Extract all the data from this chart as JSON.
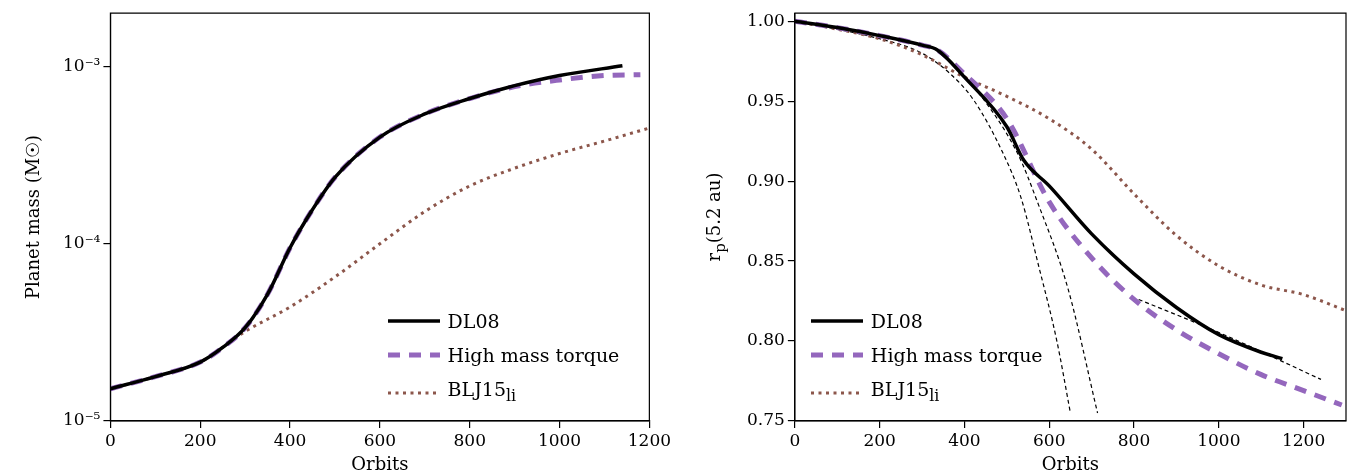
{
  "chart_data": [
    {
      "type": "line",
      "xlabel": "Orbits",
      "ylabel": "Planet mass (M☉)",
      "log": "y",
      "legend": "bottom right",
      "xlim": [
        0,
        1200
      ],
      "xticks": [
        0,
        200,
        400,
        600,
        800,
        1000,
        1200
      ],
      "ylim": [
        1e-05,
        0.002
      ],
      "yticks": [
        {
          "value": 1e-05,
          "label": "10⁻⁵"
        },
        {
          "value": 0.0001,
          "label": "10⁻⁴"
        },
        {
          "value": 0.001,
          "label": "10⁻³"
        }
      ],
      "grid": false,
      "series": [
        {
          "name": "DL08",
          "color": "#000000",
          "line_style": "solid",
          "x": [
            0,
            100,
            200,
            250,
            300,
            350,
            400,
            450,
            500,
            600,
            700,
            800,
            900,
            1000,
            1140
          ],
          "values": [
            1.52e-05,
            1.78e-05,
            2.15e-05,
            2.6e-05,
            3.36e-05,
            5.2e-05,
            9.5e-05,
            0.000156,
            0.000237,
            0.0004,
            0.00054,
            0.00066,
            0.00078,
            0.00089,
            0.00101
          ]
        },
        {
          "name": "High mass torque",
          "color": "#9467bd",
          "line_style": "dashed",
          "x": [
            0,
            100,
            200,
            250,
            300,
            350,
            400,
            450,
            500,
            600,
            700,
            800,
            900,
            1000,
            1100,
            1180
          ],
          "values": [
            1.52e-05,
            1.78e-05,
            2.15e-05,
            2.6e-05,
            3.36e-05,
            5.2e-05,
            9.5e-05,
            0.000156,
            0.000237,
            0.0004,
            0.00054,
            0.00066,
            0.00077,
            0.00084,
            0.00089,
            0.0009
          ]
        },
        {
          "name": "BLJ15$_{li}$",
          "color": "#8c564b",
          "line_style": "dotted",
          "x": [
            0,
            100,
            200,
            300,
            400,
            500,
            600,
            700,
            800,
            900,
            1000,
            1100,
            1200
          ],
          "values": [
            1.52e-05,
            1.78e-05,
            2.15e-05,
            3.2e-05,
            4.4e-05,
            6.5e-05,
            0.0001,
            0.000152,
            0.000212,
            0.000267,
            0.000323,
            0.00038,
            0.00045
          ]
        }
      ]
    },
    {
      "type": "line",
      "xlabel": "Orbits",
      "ylabel": "r$_{p}$(5.2 au)",
      "legend": "bottom left",
      "xlim": [
        0,
        1300
      ],
      "xticks": [
        0,
        200,
        400,
        600,
        800,
        1000,
        1200
      ],
      "ylim": [
        0.75,
        1.005
      ],
      "yticks": [
        {
          "value": 0.75,
          "label": "0.75"
        },
        {
          "value": 0.8,
          "label": "0.80"
        },
        {
          "value": 0.85,
          "label": "0.85"
        },
        {
          "value": 0.9,
          "label": "0.90"
        },
        {
          "value": 0.95,
          "label": "0.95"
        },
        {
          "value": 1,
          "label": "1.00"
        }
      ],
      "grid": false,
      "series": [
        {
          "name": "DL08",
          "color": "#000000",
          "line_style": "solid",
          "x": [
            0,
            100,
            200,
            300,
            336,
            400,
            500,
            540,
            600,
            700,
            800,
            900,
            1000,
            1100,
            1150
          ],
          "values": [
            1.0,
            0.996,
            0.991,
            0.985,
            0.982,
            0.965,
            0.934,
            0.913,
            0.897,
            0.867,
            0.842,
            0.821,
            0.804,
            0.793,
            0.789
          ]
        },
        {
          "name": "High mass torque",
          "color": "#9467bd",
          "line_style": "dashed",
          "x": [
            0,
            100,
            200,
            300,
            336,
            400,
            500,
            600,
            700,
            800,
            900,
            1000,
            1100,
            1200,
            1290
          ],
          "values": [
            1.0,
            0.996,
            0.991,
            0.985,
            0.982,
            0.967,
            0.939,
            0.887,
            0.852,
            0.826,
            0.807,
            0.792,
            0.779,
            0.769,
            0.76
          ]
        },
        {
          "name": "BLJ15$_{li}$",
          "color": "#8c564b",
          "line_style": "dotted",
          "x": [
            0,
            100,
            200,
            300,
            400,
            500,
            600,
            700,
            800,
            900,
            1000,
            1100,
            1200,
            1300
          ],
          "values": [
            1.0,
            0.995,
            0.989,
            0.979,
            0.965,
            0.953,
            0.939,
            0.92,
            0.892,
            0.866,
            0.847,
            0.835,
            0.829,
            0.819
          ]
        },
        {
          "color": "#000000",
          "line_style": "dashed",
          "x": [
            0,
            200,
            300,
            367,
            421,
            490,
            533,
            575,
            618,
            650
          ],
          "values": [
            1.0,
            0.989,
            0.98,
            0.967,
            0.951,
            0.918,
            0.89,
            0.847,
            0.8,
            0.755
          ]
        },
        {
          "color": "#000000",
          "line_style": "dashed",
          "x": [
            379,
            404,
            524,
            575,
            644,
            714
          ],
          "values": [
            0.972,
            0.965,
            0.918,
            0.885,
            0.833,
            0.755
          ]
        },
        {
          "color": "#000000",
          "line_style": "dashed",
          "x": [
            811,
            1003,
            1241
          ],
          "values": [
            0.826,
            0.805,
            0.776
          ]
        }
      ]
    }
  ]
}
